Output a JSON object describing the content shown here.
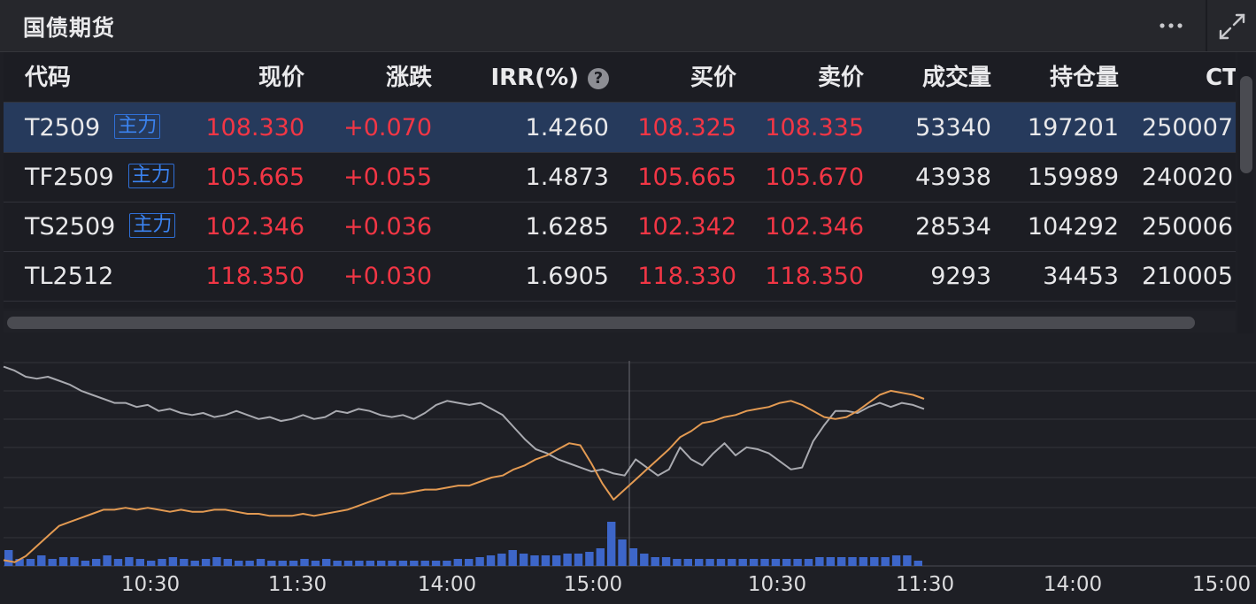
{
  "header": {
    "title": "国债期货",
    "more_icon": "more-horizontal-icon",
    "expand_icon": "expand-icon"
  },
  "table": {
    "columns": [
      "代码",
      "现价",
      "涨跌",
      "IRR(%)",
      "买价",
      "卖价",
      "成交量",
      "持仓量",
      "CT"
    ],
    "rows": [
      {
        "code": "T2509",
        "badge": "主力",
        "price": "108.330",
        "change": "+0.070",
        "irr": "1.4260",
        "bid": "108.325",
        "ask": "108.335",
        "volume": "53340",
        "open_interest": "197201",
        "ct": "250007."
      },
      {
        "code": "TF2509",
        "badge": "主力",
        "price": "105.665",
        "change": "+0.055",
        "irr": "1.4873",
        "bid": "105.665",
        "ask": "105.670",
        "volume": "43938",
        "open_interest": "159989",
        "ct": "240020."
      },
      {
        "code": "TS2509",
        "badge": "主力",
        "price": "102.346",
        "change": "+0.036",
        "irr": "1.6285",
        "bid": "102.342",
        "ask": "102.346",
        "volume": "28534",
        "open_interest": "104292",
        "ct": "250006."
      },
      {
        "code": "TL2512",
        "badge": "",
        "price": "118.350",
        "change": "+0.030",
        "irr": "1.6905",
        "bid": "118.330",
        "ask": "118.350",
        "volume": "9293",
        "open_interest": "34453",
        "ct": "210005."
      }
    ],
    "selected_row": 0
  },
  "chart_data": {
    "type": "line",
    "x_tick_labels": [
      "10:30",
      "11:30",
      "14:00",
      "15:00",
      "10:30",
      "11:30",
      "14:00",
      "15:00"
    ],
    "series": [
      {
        "color": "#a9aab0",
        "values": [
          98,
          96,
          93,
          92,
          93,
          91,
          89,
          86,
          84,
          82,
          80,
          80,
          78,
          79,
          76,
          77,
          75,
          74,
          75,
          73,
          74,
          76,
          74,
          72,
          73,
          71,
          72,
          74,
          72,
          73,
          76,
          75,
          77,
          76,
          74,
          73,
          74,
          72,
          75,
          79,
          81,
          80,
          79,
          80,
          77,
          74,
          68,
          62,
          57,
          55,
          52,
          50,
          48,
          46,
          47,
          45,
          44,
          52,
          48,
          44,
          47,
          58,
          52,
          49,
          55,
          60,
          54,
          58,
          57,
          55,
          51,
          47,
          48,
          61,
          69,
          76,
          76,
          75,
          78,
          80,
          78,
          80,
          79,
          77
        ]
      },
      {
        "color": "#e39a52",
        "values": [
          2,
          1,
          4,
          9,
          14,
          19,
          21,
          23,
          25,
          27,
          27,
          28,
          27,
          28,
          27,
          26,
          27,
          26,
          26,
          27,
          27,
          26,
          25,
          25,
          24,
          24,
          24,
          25,
          24,
          25,
          26,
          27,
          29,
          31,
          33,
          35,
          35,
          36,
          37,
          37,
          38,
          39,
          39,
          41,
          43,
          44,
          47,
          49,
          52,
          54,
          57,
          60,
          59,
          50,
          40,
          32,
          37,
          42,
          47,
          52,
          57,
          63,
          66,
          70,
          71,
          73,
          74,
          76,
          77,
          78,
          80,
          81,
          79,
          76,
          73,
          72,
          73,
          76,
          80,
          84,
          86,
          85,
          84,
          82
        ]
      }
    ],
    "volume_bars": [
      9,
      4,
      4,
      6,
      4,
      5,
      5,
      3,
      4,
      6,
      4,
      5,
      4,
      3,
      4,
      5,
      4,
      3,
      4,
      5,
      4,
      3,
      3,
      4,
      3,
      3,
      3,
      4,
      3,
      4,
      3,
      3,
      3,
      3,
      3,
      3,
      3,
      3,
      3,
      3,
      3,
      4,
      4,
      5,
      6,
      7,
      9,
      7,
      6,
      6,
      6,
      7,
      7,
      8,
      10,
      25,
      15,
      10,
      7,
      5,
      5,
      4,
      4,
      4,
      4,
      4,
      4,
      4,
      4,
      4,
      4,
      4,
      4,
      4,
      5,
      5,
      5,
      5,
      5,
      5,
      5,
      6,
      6,
      3
    ]
  }
}
